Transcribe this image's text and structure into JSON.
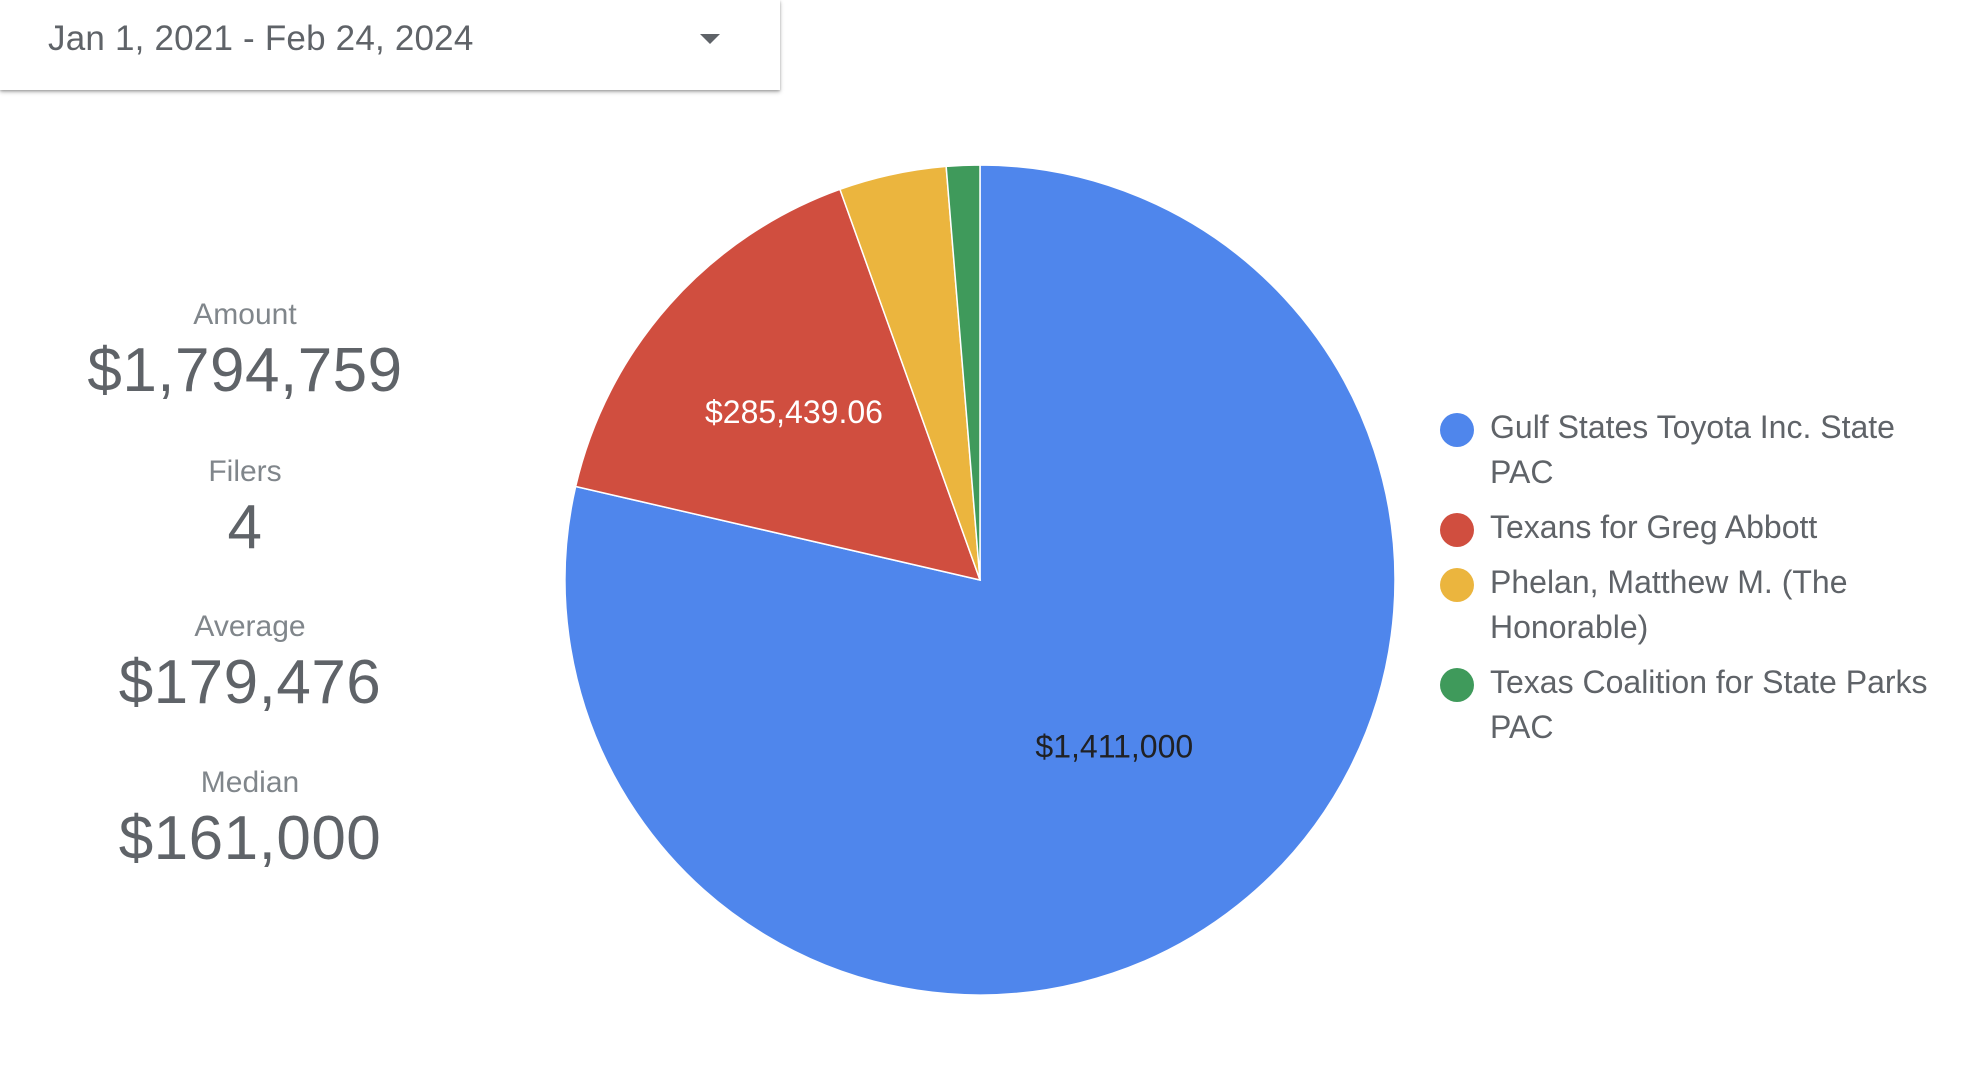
{
  "date_range": {
    "label": "Jan 1, 2021 - Feb 24, 2024",
    "icon": "caret-down-icon"
  },
  "stats": {
    "amount": {
      "label": "Amount",
      "value": "$1,794,759"
    },
    "filers": {
      "label": "Filers",
      "value": "4"
    },
    "average": {
      "label": "Average",
      "value": "$179,476"
    },
    "median": {
      "label": "Median",
      "value": "$161,000"
    }
  },
  "chart_data": {
    "type": "pie",
    "legend_position": "right",
    "slices": [
      {
        "name": "Gulf States Toyota Inc. State PAC",
        "value": 1411000,
        "label": "$1,411,000",
        "color": "#4f86ec",
        "label_color": "#202124"
      },
      {
        "name": "Texans for Greg Abbott",
        "value": 285439.06,
        "label": "$285,439.06",
        "color": "#d04e3f",
        "label_color": "#ffffff"
      },
      {
        "name": "Phelan, Matthew M. (The Honorable)",
        "value": 75000,
        "label": "",
        "color": "#ebb53e",
        "label_color": "#ffffff"
      },
      {
        "name": "Texas Coalition for State Parks PAC",
        "value": 23320,
        "label": "",
        "color": "#3f9a5b",
        "label_color": "#ffffff"
      }
    ]
  }
}
